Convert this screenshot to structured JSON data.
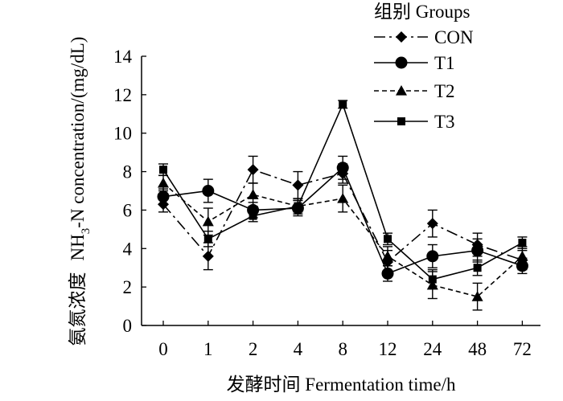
{
  "chart_data": {
    "type": "line",
    "xlabel": "发酵时间 Fermentation time/h",
    "ylabel": "氨氮浓度  NH3-N concentration/(mg/dL)",
    "ylabel_cn": "氨氮浓度",
    "ylabel_en_pre": "NH",
    "ylabel_en_sub": "3",
    "ylabel_en_post": "-N concentration/(mg/dL)",
    "legend_title": "组别 Groups",
    "legend_position": "top-right",
    "grid": false,
    "ylim": [
      0,
      14
    ],
    "yticks": [
      "0",
      "2",
      "4",
      "6",
      "8",
      "10",
      "12",
      "14"
    ],
    "categories": [
      "0",
      "1",
      "2",
      "4",
      "8",
      "12",
      "24",
      "48",
      "72"
    ],
    "series": [
      {
        "name": "CON",
        "marker": "diamond",
        "dash": "longdash-dot",
        "values": [
          6.3,
          3.6,
          8.1,
          7.3,
          7.9,
          3.3,
          5.3,
          4.2,
          3.4
        ],
        "errors": [
          0.4,
          0.7,
          0.7,
          0.7,
          0.5,
          0.6,
          0.7,
          0.6,
          0.5
        ]
      },
      {
        "name": "T1",
        "marker": "circle",
        "dash": "solid",
        "values": [
          6.7,
          7.0,
          6.0,
          6.1,
          8.2,
          2.7,
          3.6,
          3.9,
          3.1
        ],
        "errors": [
          0.4,
          0.6,
          0.4,
          0.4,
          0.6,
          0.4,
          0.6,
          0.6,
          0.4
        ]
      },
      {
        "name": "T2",
        "marker": "triangle",
        "dash": "dashed",
        "values": [
          7.4,
          5.4,
          6.8,
          6.2,
          6.6,
          3.6,
          2.1,
          1.5,
          3.6
        ],
        "errors": [
          0.4,
          0.7,
          0.6,
          0.4,
          0.7,
          0.5,
          0.7,
          0.7,
          0.5
        ]
      },
      {
        "name": "T3",
        "marker": "square",
        "dash": "solid",
        "values": [
          8.1,
          4.5,
          5.7,
          6.2,
          11.5,
          4.5,
          2.4,
          3.0,
          4.3
        ],
        "errors": [
          0.3,
          0.4,
          0.3,
          0.3,
          0.2,
          0.3,
          0.5,
          0.4,
          0.3
        ]
      }
    ]
  }
}
